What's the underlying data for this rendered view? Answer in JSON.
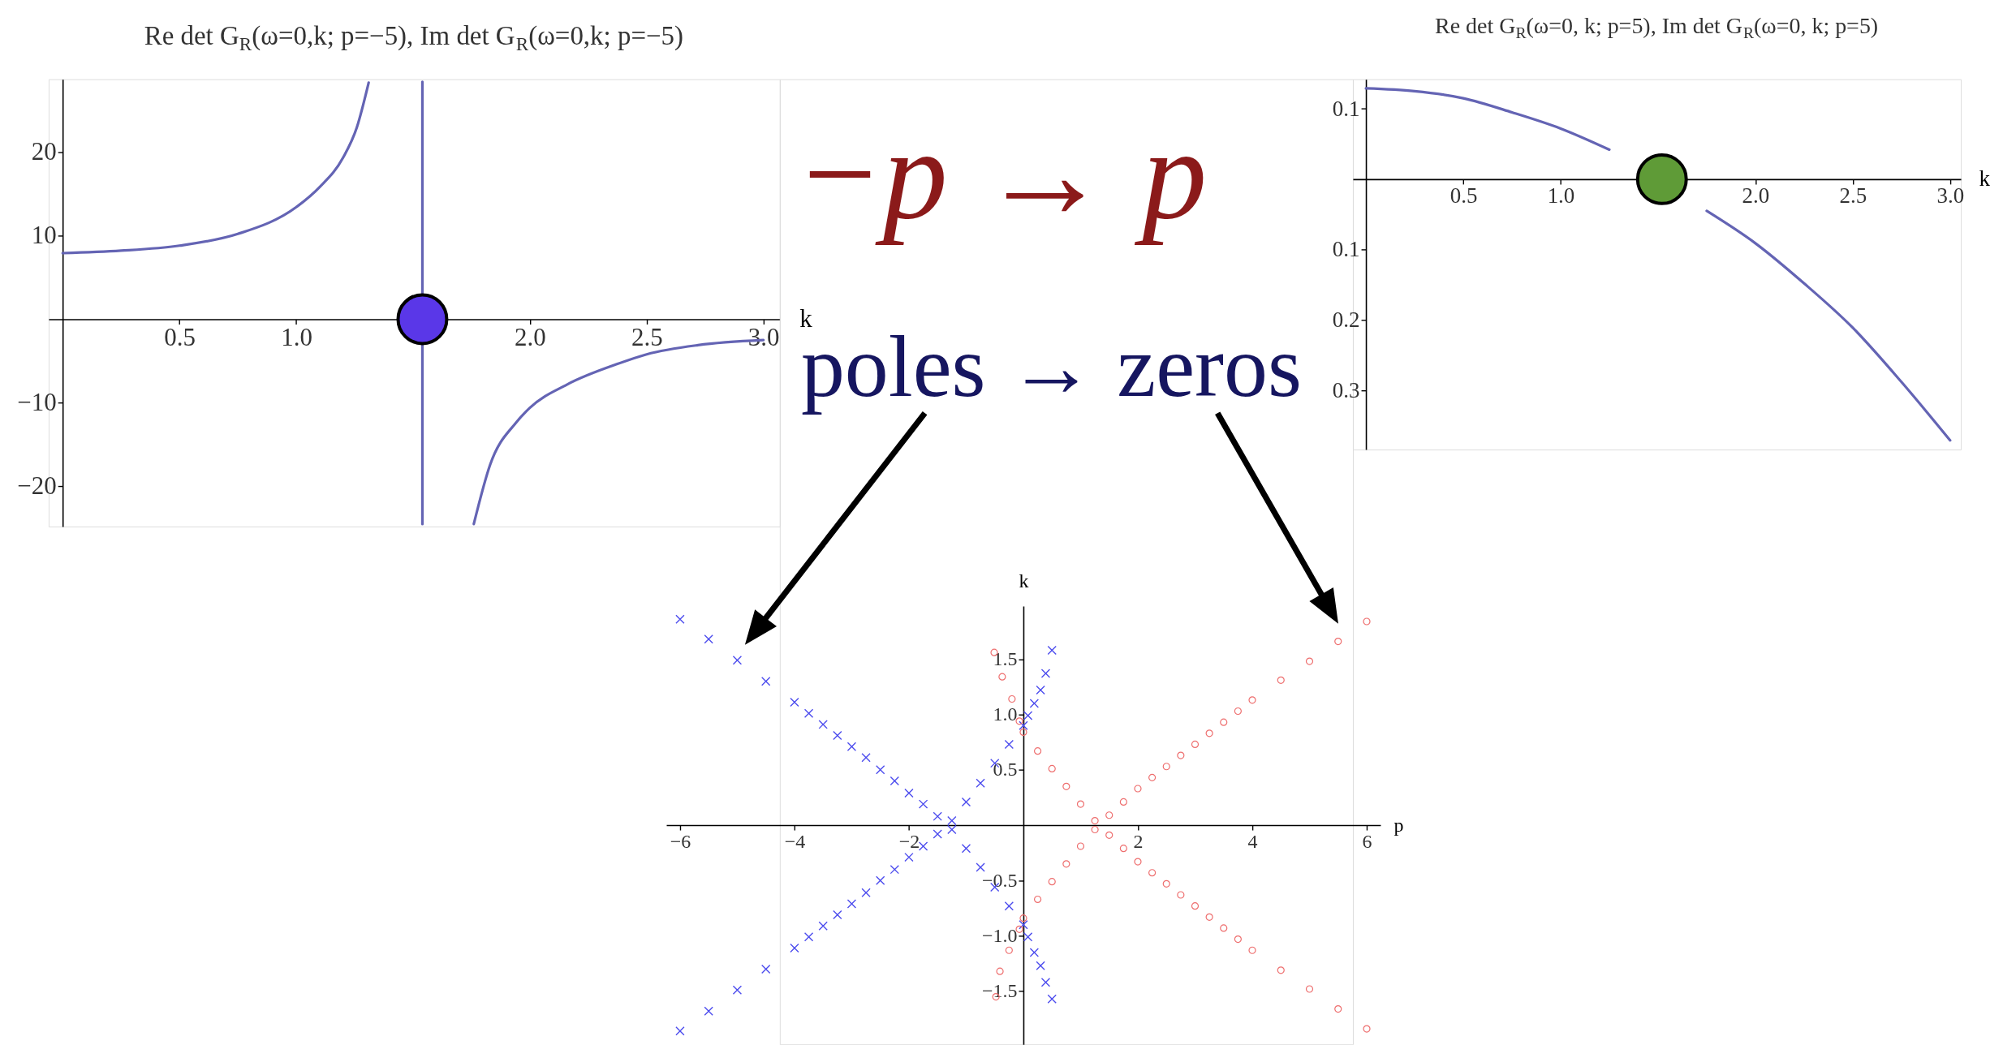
{
  "chart_data": [
    {
      "type": "line",
      "title": "Re det G$_{R}$(ω=0,k; p=−5), Im det G$_{R}$(ω=0,k; p=−5)",
      "xlabel": "k",
      "xlim": [
        -0.06,
        3.07
      ],
      "ylim": [
        -24.8,
        28.7
      ],
      "xticks": [
        0.5,
        {
          "value": 1,
          "label": "1.0"
        },
        {
          "value": 1.5,
          "label": null
        },
        {
          "value": 2,
          "label": "2.0"
        },
        2.5,
        {
          "value": 3,
          "label": "3.0"
        }
      ],
      "yticks": [
        -20,
        -10,
        10,
        20
      ],
      "series": [
        {
          "type": "line",
          "color": "#6464b4",
          "x": [
            0,
            0.25,
            0.5,
            0.75,
            1.0,
            1.1,
            1.2,
            1.26,
            1.31
          ],
          "values": [
            7.9,
            8.2,
            8.8,
            10.2,
            13.4,
            15.8,
            19.3,
            23,
            28.3
          ]
        },
        {
          "type": "line",
          "color": "#6464b4",
          "x": [
            1.54,
            1.54
          ],
          "values": [
            28.4,
            -24.5
          ]
        },
        {
          "type": "line",
          "color": "#6464b4",
          "x": [
            1.76,
            1.83,
            1.94,
            2.0,
            2.16,
            2.38,
            2.5,
            2.72,
            3.0
          ],
          "values": [
            -24.5,
            -17.4,
            -12.4,
            -10.6,
            -7.8,
            -5.3,
            -4.2,
            -3.1,
            -2.5
          ]
        },
        {
          "type": "scatter",
          "color": "#5a37e8",
          "marker": "circle",
          "x": [
            1.54
          ],
          "values": [
            0
          ]
        }
      ]
    },
    {
      "type": "scatter",
      "annotations": [
        "−p → p",
        "poles → zeros"
      ],
      "xlabel": "p",
      "ylabel": "k",
      "xlim": [
        -6.24,
        6.24
      ],
      "ylim": [
        -1.98,
        1.98
      ],
      "xticks": [
        -6,
        -4,
        -2,
        2,
        4,
        6
      ],
      "yticks": [
        -1.5,
        {
          "value": -1,
          "label": "−1.0"
        },
        -0.5,
        0.5,
        {
          "value": 1,
          "label": "1.0"
        },
        1.5
      ],
      "series": [
        {
          "color": "#4d4dee",
          "marker": "cross",
          "x": [
            -6,
            -5.5,
            -5,
            -4.5,
            -4,
            -3.75,
            -3.5,
            -3.25,
            -3,
            -2.75,
            -2.5,
            -2.25,
            -2,
            -1.75,
            -1.5,
            -1.25,
            -1,
            -0.75,
            -0.5,
            -0.25,
            0,
            0.08,
            0.19,
            0.3,
            0.39,
            0.5,
            -6,
            -5.5,
            -5,
            -4.5,
            -4,
            -3.75,
            -3.5,
            -3.25,
            -3,
            -2.75,
            -2.5,
            -2.25,
            -2,
            -1.75,
            -1.5,
            -1.25,
            -1,
            -0.75,
            -0.5,
            -0.25,
            0,
            0.08,
            0.19,
            0.3,
            0.39,
            0.5
          ],
          "values": [
            -1.86,
            -1.68,
            -1.49,
            -1.3,
            -1.11,
            -1.01,
            -0.91,
            -0.81,
            -0.71,
            -0.61,
            -0.5,
            -0.4,
            -0.29,
            -0.19,
            -0.08,
            0.04,
            0.21,
            0.38,
            0.56,
            0.73,
            0.9,
            0.99,
            1.1,
            1.22,
            1.37,
            1.58,
            1.86,
            1.68,
            1.49,
            1.3,
            1.11,
            1.01,
            0.91,
            0.81,
            0.71,
            0.61,
            0.5,
            0.4,
            0.29,
            0.19,
            0.08,
            -0.04,
            -0.21,
            -0.38,
            -0.56,
            -0.73,
            -0.9,
            -1.01,
            -1.15,
            -1.27,
            -1.42,
            -1.57
          ]
        },
        {
          "color": "#ee6e6e",
          "marker": "circle",
          "x": [
            6,
            5.5,
            5,
            4.5,
            4,
            3.75,
            3.5,
            3.25,
            3,
            2.75,
            2.5,
            2.25,
            2,
            1.75,
            1.5,
            1.25,
            1,
            0.75,
            0.5,
            0.25,
            0,
            -0.07,
            -0.2,
            -0.37,
            -0.51,
            6,
            5.5,
            5,
            4.5,
            4,
            3.75,
            3.5,
            3.25,
            3,
            2.75,
            2.5,
            2.25,
            2,
            1.75,
            1.5,
            1.25,
            1,
            0.75,
            0.5,
            0.25,
            0,
            -0.07,
            -0.25,
            -0.41,
            -0.48
          ],
          "values": [
            -1.84,
            -1.66,
            -1.48,
            -1.31,
            -1.13,
            -1.03,
            -0.93,
            -0.83,
            -0.73,
            -0.63,
            -0.53,
            -0.43,
            -0.33,
            -0.21,
            -0.09,
            0.04,
            0.19,
            0.35,
            0.51,
            0.67,
            0.84,
            0.94,
            1.14,
            1.34,
            1.56,
            1.84,
            1.66,
            1.48,
            1.31,
            1.13,
            1.03,
            0.93,
            0.83,
            0.73,
            0.63,
            0.53,
            0.43,
            0.33,
            0.21,
            0.09,
            -0.04,
            -0.19,
            -0.35,
            -0.51,
            -0.67,
            -0.84,
            -0.94,
            -1.13,
            -1.32,
            -1.55
          ]
        }
      ]
    },
    {
      "type": "line",
      "title": "Re det G$_{R}$(ω=0, k; p=5), Im det G$_{R}$(ω=0, k; p=5)",
      "xlabel": "k",
      "xlim": [
        -0.067,
        3.055
      ],
      "ylim": [
        -0.384,
        0.142
      ],
      "xticks": [
        0.5,
        {
          "value": 1,
          "label": "1.0"
        },
        {
          "value": 1.5,
          "label": null
        },
        {
          "value": 2,
          "label": "2.0"
        },
        2.5,
        {
          "value": 3,
          "label": "3.0"
        }
      ],
      "yticks": [
        0.1,
        {
          "value": -0.1,
          "label": "0.1"
        },
        {
          "value": -0.2,
          "label": "0.2"
        },
        {
          "value": -0.3,
          "label": "0.3"
        }
      ],
      "series": [
        {
          "type": "line",
          "color": "#6464b4",
          "x": [
            0,
            0.25,
            0.5,
            0.75,
            1,
            1.25,
            1.5,
            1.75,
            2,
            2.25,
            2.5,
            2.75,
            3
          ],
          "values": [
            0.129,
            0.125,
            0.115,
            0.095,
            0.072,
            0.042,
            null,
            -0.045,
            -0.091,
            -0.148,
            -0.211,
            -0.288,
            -0.371
          ]
        },
        {
          "type": "scatter",
          "color": "#5f9b37",
          "marker": "circle",
          "x": [
            1.52
          ],
          "values": [
            0
          ]
        }
      ]
    }
  ]
}
